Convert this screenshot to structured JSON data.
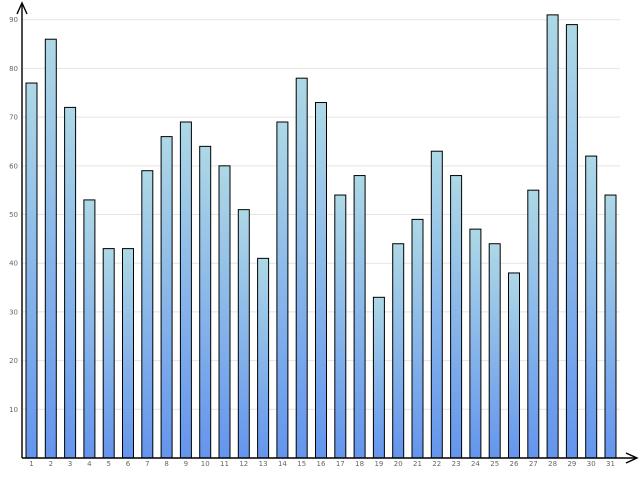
{
  "chart_data": {
    "type": "bar",
    "title": "",
    "xlabel": "",
    "ylabel": "",
    "categories": [
      "1",
      "2",
      "3",
      "4",
      "5",
      "6",
      "7",
      "8",
      "9",
      "10",
      "11",
      "12",
      "13",
      "14",
      "15",
      "16",
      "17",
      "18",
      "19",
      "20",
      "21",
      "22",
      "23",
      "24",
      "25",
      "26",
      "27",
      "28",
      "29",
      "30",
      "31"
    ],
    "values": [
      77,
      86,
      72,
      53,
      43,
      43,
      59,
      66,
      69,
      64,
      60,
      51,
      41,
      69,
      78,
      73,
      54,
      58,
      33,
      44,
      49,
      63,
      58,
      47,
      44,
      38,
      55,
      91,
      89,
      62,
      54
    ],
    "ylim": [
      0,
      92
    ],
    "yticks": [
      10,
      20,
      30,
      40,
      50,
      60,
      70,
      80,
      90
    ],
    "grid": true,
    "legend": "none",
    "colors": {
      "bar_top": "#add8e6",
      "bar_bottom": "#6495ed",
      "bar_outline": "#000000",
      "grid": "#e4e4e4",
      "axis": "#000000",
      "tick_text": "#666666"
    }
  }
}
